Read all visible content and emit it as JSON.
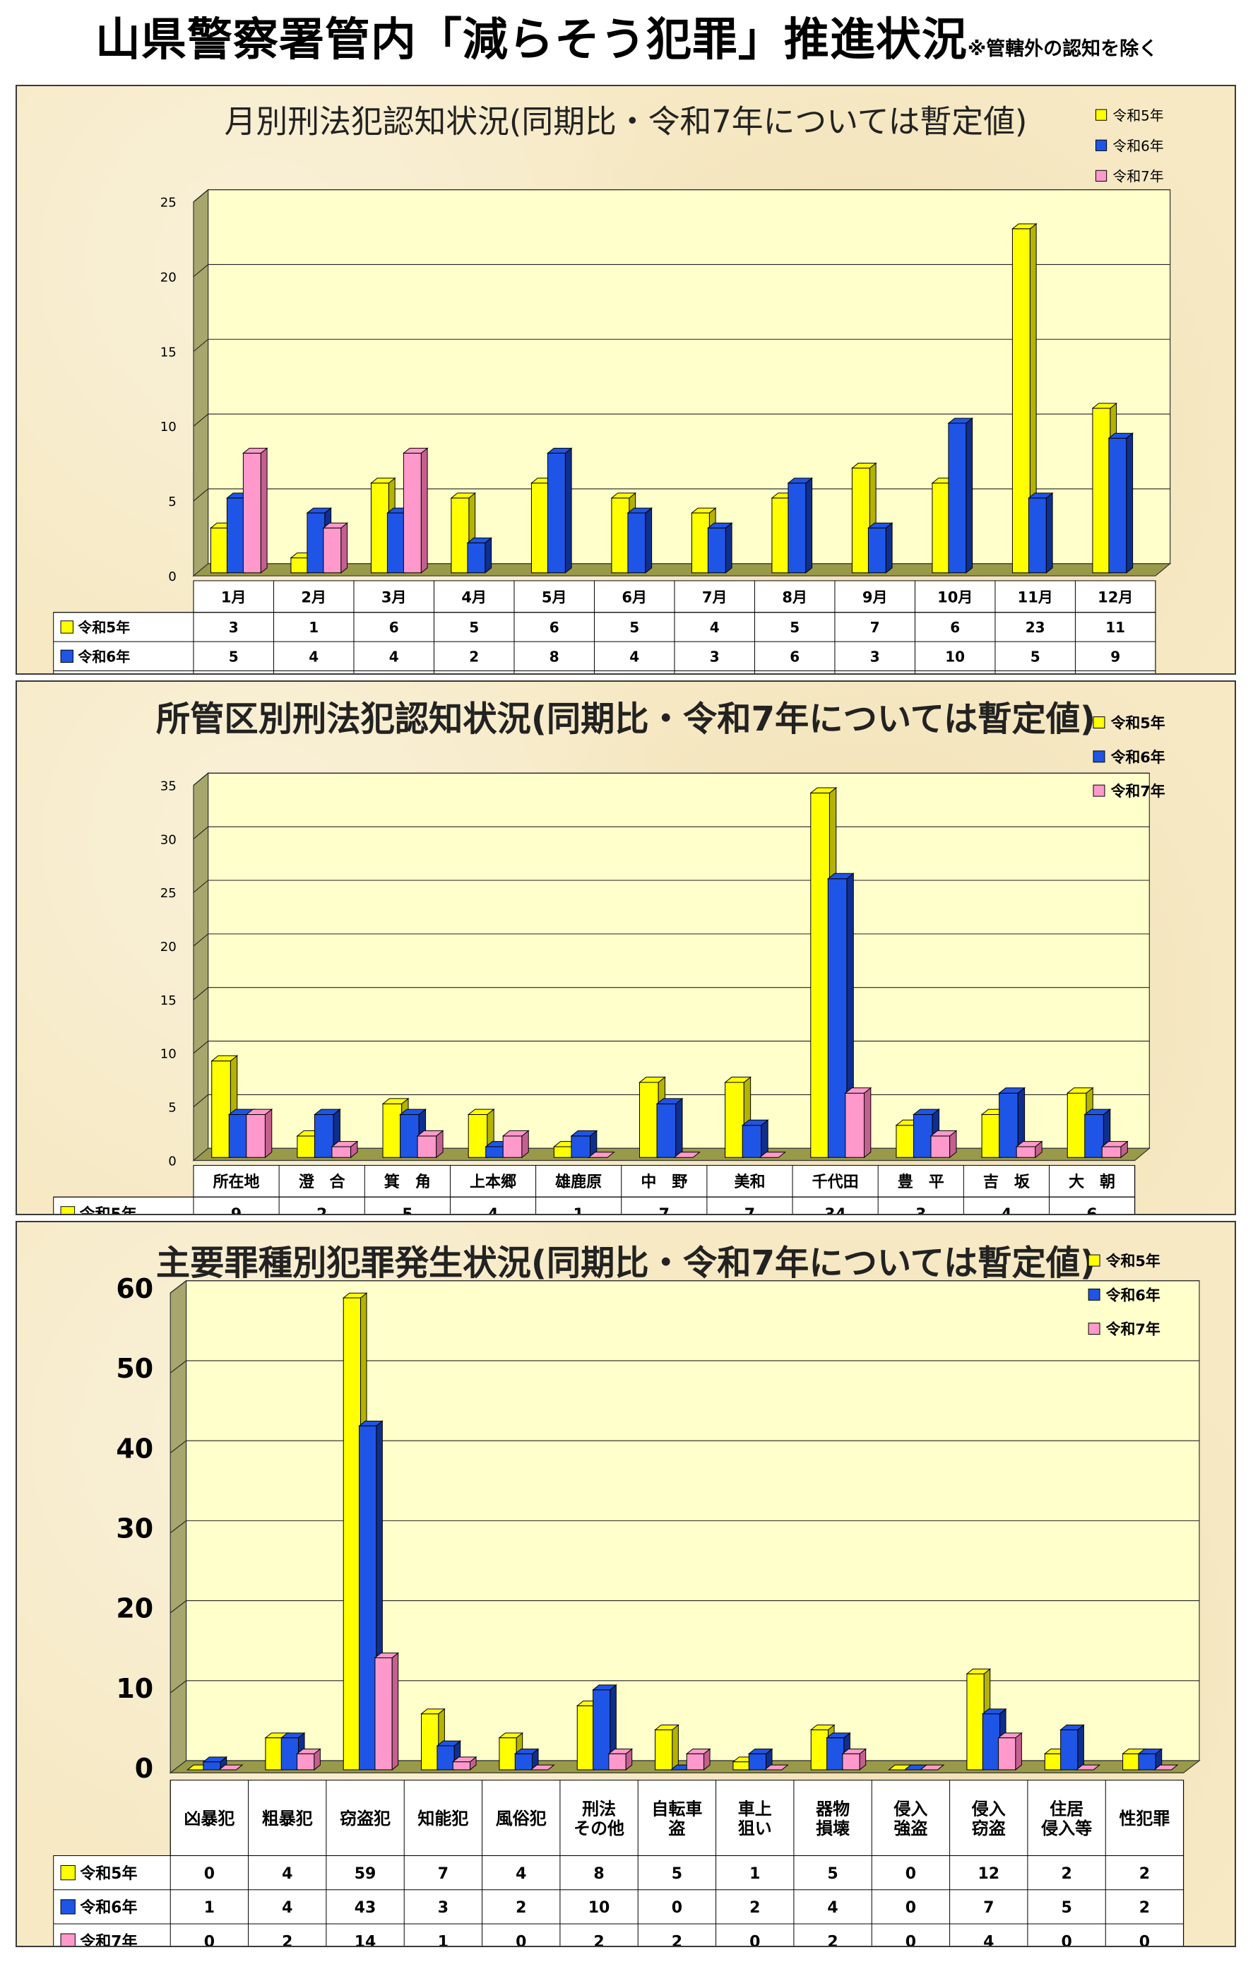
{
  "page": {
    "title": "山県警察署管内「減らそう犯罪」推進状況",
    "note": "※管轄外の認知を除く"
  },
  "colors": {
    "series": [
      "#ffff00",
      "#1f55e6",
      "#ff99cc"
    ],
    "series_dark": [
      "#b3b300",
      "#0f2f8f",
      "#c4608f"
    ],
    "plot_bg": "#ffffcc",
    "plot_wall": "#a6a66d",
    "plot_floor": "#99994a"
  },
  "chart_data": [
    {
      "type": "bar",
      "title": "月別刑法犯認知状況(同期比・令和7年については暫定値)",
      "categories": [
        "1月",
        "2月",
        "3月",
        "4月",
        "5月",
        "6月",
        "7月",
        "8月",
        "9月",
        "10月",
        "11月",
        "12月"
      ],
      "series": [
        {
          "name": "令和5年",
          "values": [
            3,
            1,
            6,
            5,
            6,
            5,
            4,
            5,
            7,
            6,
            23,
            11
          ]
        },
        {
          "name": "令和6年",
          "values": [
            5,
            4,
            4,
            2,
            8,
            4,
            3,
            6,
            3,
            10,
            5,
            9
          ]
        },
        {
          "name": "令和7年",
          "values": [
            8,
            3,
            8,
            null,
            null,
            null,
            null,
            null,
            null,
            null,
            null,
            null
          ]
        }
      ],
      "ylim": [
        0,
        25
      ],
      "yticks": [
        0,
        5,
        10,
        15,
        20,
        25
      ],
      "legend": "top-right",
      "grid": true
    },
    {
      "type": "bar",
      "title": "所管区別刑法犯認知状況(同期比・令和7年については暫定値)",
      "categories": [
        "所在地",
        "澄　合",
        "箕　角",
        "上本郷",
        "雄鹿原",
        "中　野",
        "美和",
        "千代田",
        "豊　平",
        "吉　坂",
        "大　朝"
      ],
      "series": [
        {
          "name": "令和5年",
          "values": [
            9,
            2,
            5,
            4,
            1,
            7,
            7,
            34,
            3,
            4,
            6
          ]
        },
        {
          "name": "令和6年",
          "values": [
            4,
            4,
            4,
            1,
            2,
            5,
            3,
            26,
            4,
            6,
            4
          ]
        },
        {
          "name": "令和7年",
          "values": [
            4,
            1,
            2,
            2,
            0,
            0,
            0,
            6,
            2,
            1,
            1
          ]
        }
      ],
      "ylim": [
        0,
        35
      ],
      "yticks": [
        0,
        5,
        10,
        15,
        20,
        25,
        30,
        35
      ],
      "legend": "top-right",
      "grid": true
    },
    {
      "type": "bar",
      "title": "主要罪種別犯罪発生状況(同期比・令和7年については暫定値)",
      "categories": [
        [
          "凶暴犯"
        ],
        [
          "粗暴犯"
        ],
        [
          "窃盗犯"
        ],
        [
          "知能犯"
        ],
        [
          "風俗犯"
        ],
        [
          "刑法",
          "その他"
        ],
        [
          "自転車",
          "盗"
        ],
        [
          "車上",
          "狙い"
        ],
        [
          "器物",
          "損壊"
        ],
        [
          "侵入",
          "強盗"
        ],
        [
          "侵入",
          "窃盗"
        ],
        [
          "住居",
          "侵入等"
        ],
        [
          "性犯罪"
        ]
      ],
      "series": [
        {
          "name": "令和5年",
          "values": [
            0,
            4,
            59,
            7,
            4,
            8,
            5,
            1,
            5,
            0,
            12,
            2,
            2
          ]
        },
        {
          "name": "令和6年",
          "values": [
            1,
            4,
            43,
            3,
            2,
            10,
            0,
            2,
            4,
            0,
            7,
            5,
            2
          ]
        },
        {
          "name": "令和7年",
          "values": [
            0,
            2,
            14,
            1,
            0,
            2,
            2,
            0,
            2,
            0,
            4,
            0,
            0
          ]
        }
      ],
      "ylim": [
        0,
        60
      ],
      "yticks": [
        0,
        10,
        20,
        30,
        40,
        50,
        60
      ],
      "legend": "top-right",
      "grid": true
    }
  ]
}
